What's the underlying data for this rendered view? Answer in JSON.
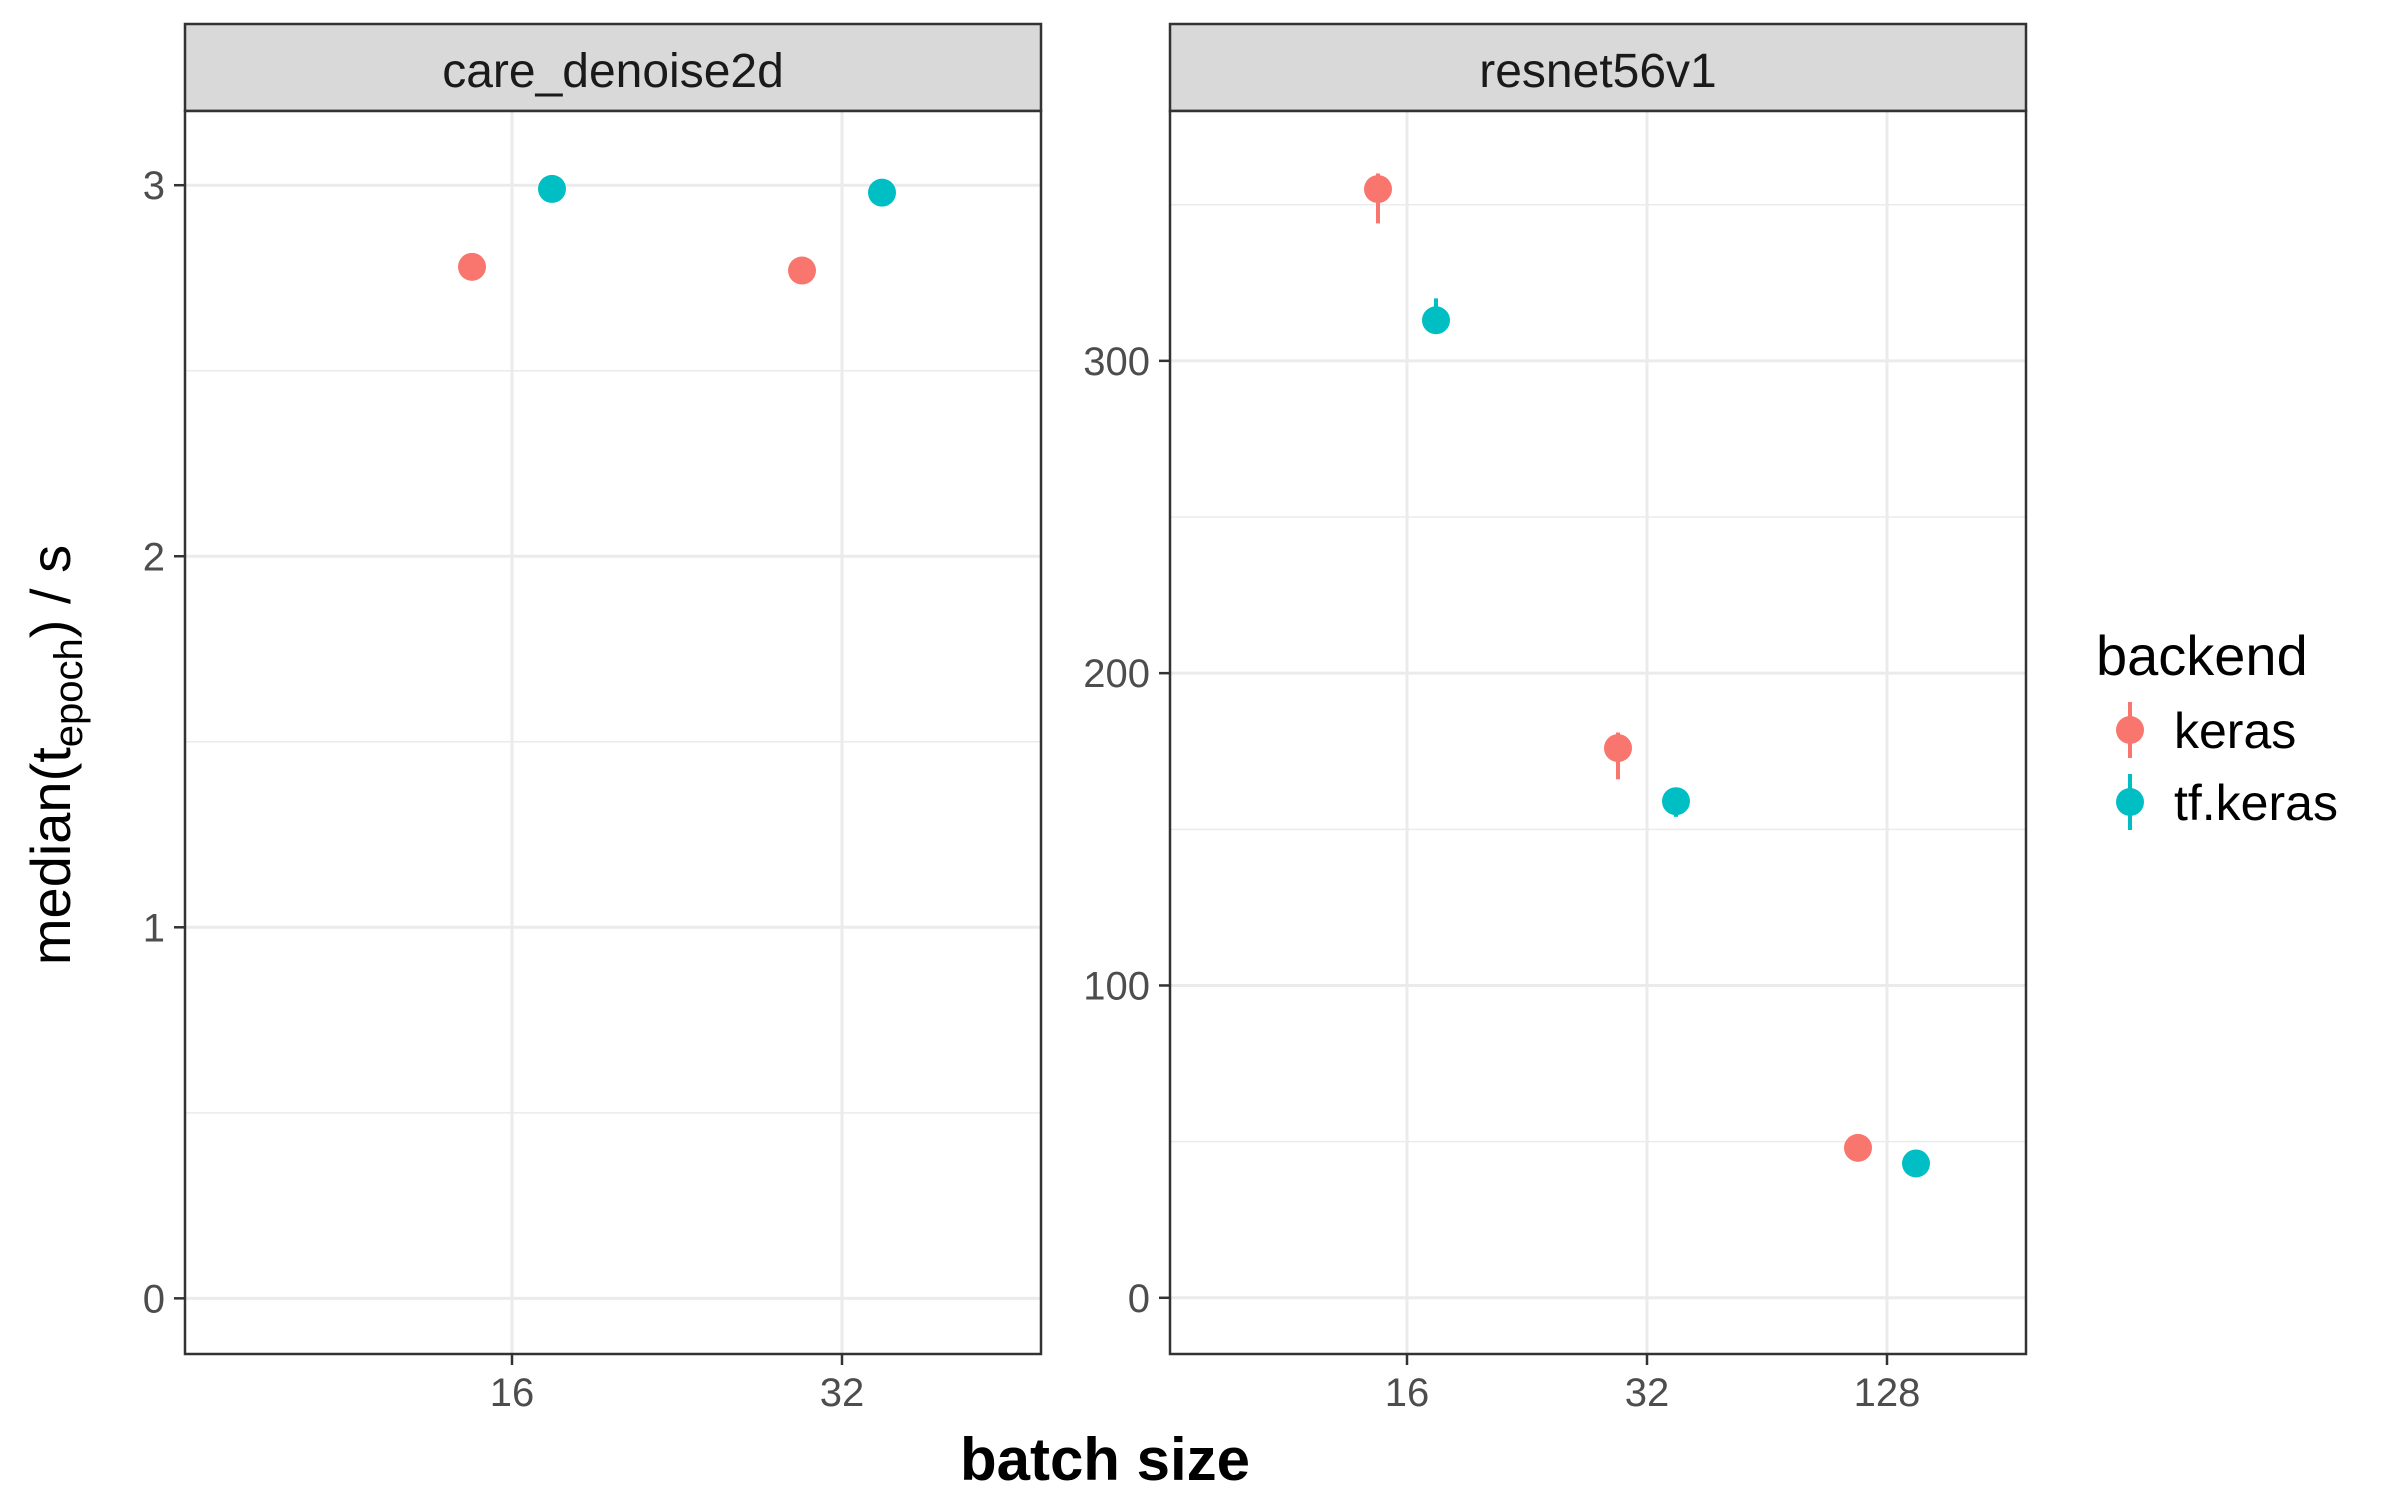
{
  "chart_data": {
    "type": "scatter",
    "xlabel": "batch size",
    "ylabel": {
      "prefix": "median(t",
      "subscript": "epoch",
      "suffix": ") / s"
    },
    "legend": {
      "title": "backend",
      "placement": "right",
      "items": [
        {
          "label": "keras",
          "color": "#F8766D"
        },
        {
          "label": "tf.keras",
          "color": "#00BFC4"
        }
      ]
    },
    "grid": true,
    "panels": [
      {
        "title": "care_denoise2d",
        "x_categories": [
          "16",
          "32"
        ],
        "ylim": [
          -0.15,
          3.2
        ],
        "yticks": [
          0,
          1,
          2,
          3
        ],
        "series": [
          {
            "name": "keras",
            "color": "#F8766D",
            "points": [
              {
                "x": "16",
                "y": 2.78
              },
              {
                "x": "32",
                "y": 2.77
              }
            ]
          },
          {
            "name": "tf.keras",
            "color": "#00BFC4",
            "points": [
              {
                "x": "16",
                "y": 2.99
              },
              {
                "x": "32",
                "y": 2.98
              }
            ]
          }
        ]
      },
      {
        "title": "resnet56v1",
        "x_categories": [
          "16",
          "32",
          "128"
        ],
        "ylim": [
          -18,
          380
        ],
        "yticks": [
          0,
          100,
          200,
          300
        ],
        "series": [
          {
            "name": "keras",
            "color": "#F8766D",
            "points": [
              {
                "x": "16",
                "y": 355,
                "ymin": 344,
                "ymax": 360
              },
              {
                "x": "32",
                "y": 176,
                "ymin": 166,
                "ymax": 181
              },
              {
                "x": "128",
                "y": 48,
                "ymin": 47,
                "ymax": 49
              }
            ]
          },
          {
            "name": "tf.keras",
            "color": "#00BFC4",
            "points": [
              {
                "x": "16",
                "y": 313,
                "ymin": 311,
                "ymax": 320
              },
              {
                "x": "32",
                "y": 159,
                "ymin": 154,
                "ymax": 161
              },
              {
                "x": "128",
                "y": 43,
                "ymin": 42,
                "ymax": 44
              }
            ]
          }
        ]
      }
    ]
  }
}
